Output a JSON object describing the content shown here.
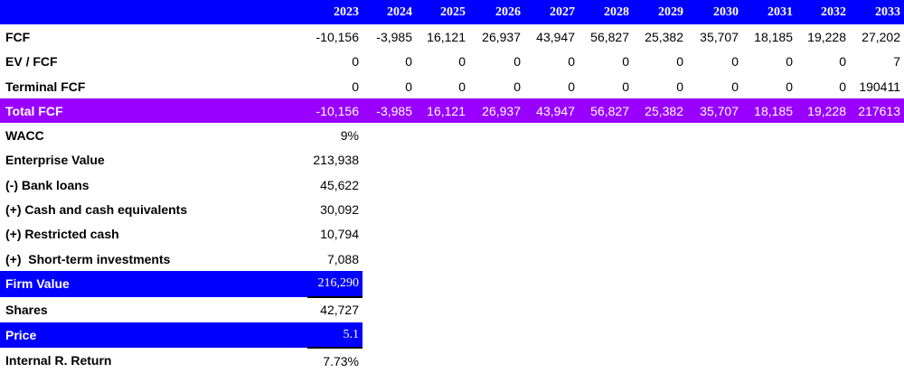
{
  "colors": {
    "header_bg": "#0000ff",
    "total_bg": "#9900ff",
    "highlight_bg": "#0000ff"
  },
  "header": {
    "years": [
      "2023",
      "2024",
      "2025",
      "2026",
      "2027",
      "2028",
      "2029",
      "2030",
      "2031",
      "2032",
      "2033"
    ]
  },
  "rows": [
    {
      "label": "FCF",
      "values": [
        "-10,156",
        "-3,985",
        "16,121",
        "26,937",
        "43,947",
        "56,827",
        "25,382",
        "35,707",
        "18,185",
        "19,228",
        "27,202"
      ]
    },
    {
      "label": "EV / FCF",
      "values": [
        "0",
        "0",
        "0",
        "0",
        "0",
        "0",
        "0",
        "0",
        "0",
        "0",
        "7"
      ]
    },
    {
      "label": "Terminal FCF",
      "values": [
        "0",
        "0",
        "0",
        "0",
        "0",
        "0",
        "0",
        "0",
        "0",
        "0",
        "190411"
      ]
    },
    {
      "label": "Total FCF",
      "values": [
        "-10,156",
        "-3,985",
        "16,121",
        "26,937",
        "43,947",
        "56,827",
        "25,382",
        "35,707",
        "18,185",
        "19,228",
        "217613"
      ]
    }
  ],
  "valuation": [
    {
      "label": "WACC",
      "value": "9%"
    },
    {
      "label": "Enterprise Value",
      "value": "213,938"
    },
    {
      "label": "(-) Bank loans",
      "value": "45,622"
    },
    {
      "label": "(+) Cash and cash equivalents",
      "value": "30,092"
    },
    {
      "label": "(+) Restricted cash",
      "value": "10,794"
    },
    {
      "label": "(+)  Short-term investments",
      "value": "7,088"
    },
    {
      "label": "Firm Value",
      "value": "216,290"
    },
    {
      "label": "Shares",
      "value": "42,727"
    },
    {
      "label": "Price",
      "value": "5.1"
    },
    {
      "label": "Internal R. Return",
      "value": "7.73%"
    }
  ]
}
